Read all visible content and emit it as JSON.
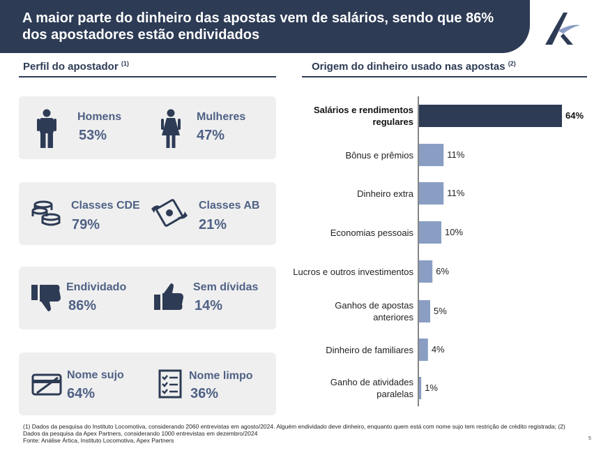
{
  "header": {
    "title": "A maior parte do dinheiro das apostas vem de salários, sendo que 86% dos apostadores estão endividados"
  },
  "left_panel": {
    "title": "Perfil do apostador",
    "title_note": "(1)",
    "cards": [
      {
        "left": {
          "icon": "man-icon",
          "label": "Homens",
          "value": "53%"
        },
        "right": {
          "icon": "woman-icon",
          "label": "Mulheres",
          "value": "47%"
        }
      },
      {
        "left": {
          "icon": "coins-icon",
          "label": "Classes CDE",
          "value": "79%"
        },
        "right": {
          "icon": "flying-money-icon",
          "label": "Classes AB",
          "value": "21%"
        }
      },
      {
        "left": {
          "icon": "thumbs-down-icon",
          "label": "Endividado",
          "value": "86%"
        },
        "right": {
          "icon": "thumbs-up-icon",
          "label": "Sem dívidas",
          "value": "14%"
        }
      },
      {
        "left": {
          "icon": "blocked-card-icon",
          "label": "Nome sujo",
          "value": "64%"
        },
        "right": {
          "icon": "checklist-icon",
          "label": "Nome limpo",
          "value": "36%"
        }
      }
    ]
  },
  "right_panel": {
    "title": "Origem do dinheiro usado nas apostas",
    "title_note": "(2)"
  },
  "chart_data": {
    "type": "bar",
    "orientation": "horizontal",
    "title": "Origem do dinheiro usado nas apostas",
    "categories": [
      "Salários e rendimentos regulares",
      "Bônus e prêmios",
      "Dinheiro extra",
      "Economias pessoais",
      "Lucros e outros investimentos",
      "Ganhos de apostas anteriores",
      "Dinheiro de familiares",
      "Ganho de atividades paralelas"
    ],
    "values": [
      64,
      11,
      11,
      10,
      6,
      5,
      4,
      1
    ],
    "value_labels": [
      "64%",
      "11%",
      "11%",
      "10%",
      "6%",
      "5%",
      "4%",
      "1%"
    ],
    "highlight_index": 0,
    "xlim": [
      0,
      64
    ],
    "grid": false,
    "colors": {
      "highlight": "#2d3b55",
      "default": "#8a9ec4"
    }
  },
  "footnotes": [
    "(1) Dados da pesquisa do Instituto Locomotiva, considerando 2060 entrevistas em agosto/2024. Alguém endividado deve dinheiro, enquanto quem está com nome sujo tem restrição de crédito registrada; (2) Dados da pesquisa da Apex Partners, considerando 1000 entrevistas em dezembro/2024",
    "Fonte: Análise Ártica, Instituto Locomotiva, Apex Partners"
  ],
  "page_number": "5",
  "colors": {
    "navy": "#2d3b55",
    "slate": "#4f6185",
    "card_bg": "#efefef"
  }
}
